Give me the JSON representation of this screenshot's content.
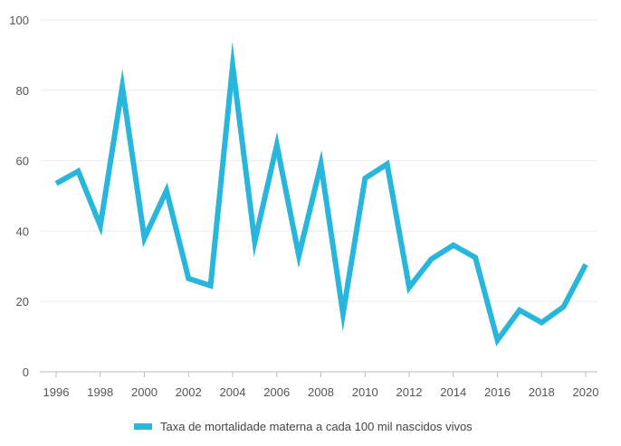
{
  "chart_data": {
    "type": "line",
    "title": "",
    "xlabel": "",
    "ylabel": "",
    "xlim": [
      1996,
      2020
    ],
    "ylim": [
      0,
      100
    ],
    "y_ticks": [
      "0",
      "20",
      "40",
      "60",
      "80",
      "100"
    ],
    "x_ticks": [
      "1996",
      "1998",
      "2000",
      "2002",
      "2004",
      "2006",
      "2008",
      "2010",
      "2012",
      "2014",
      "2016",
      "2018",
      "2020"
    ],
    "grid": "horizontal",
    "legend_position": "bottom-center",
    "series": [
      {
        "name": "Taxa de mortalidade materna a cada 100 mil nascidos vivos",
        "color": "#29b6dc",
        "x": [
          1996,
          1997,
          1998,
          1999,
          2000,
          2001,
          2002,
          2003,
          2004,
          2005,
          2006,
          2007,
          2008,
          2009,
          2010,
          2011,
          2012,
          2013,
          2014,
          2015,
          2016,
          2017,
          2018,
          2019,
          2020
        ],
        "y": [
          53.5,
          57,
          41.5,
          81,
          38,
          51.5,
          26.5,
          24.5,
          87,
          37,
          64.5,
          33,
          59,
          16.5,
          55,
          59,
          24,
          32,
          36,
          32.5,
          9,
          17.5,
          14,
          18.5,
          30.5
        ]
      }
    ]
  }
}
